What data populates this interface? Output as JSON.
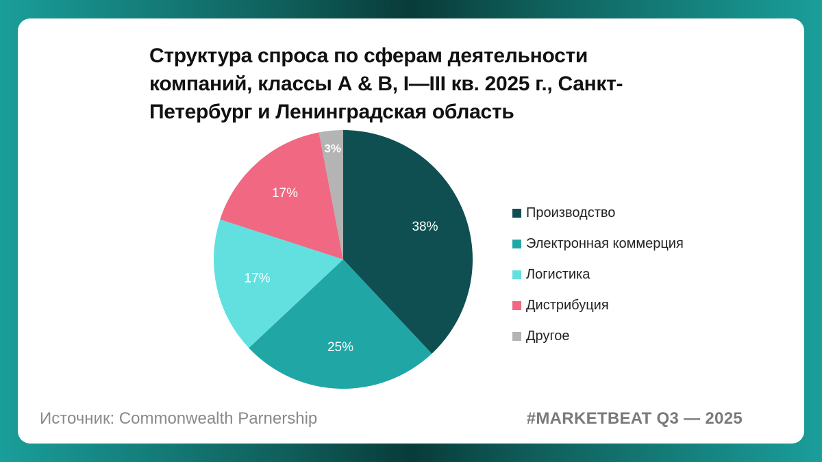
{
  "title": "Структура спроса по сферам деятельности компаний, классы А & B, I—III кв. 2025 г., Санкт-Петербург и Ленинградская область",
  "source": "Источник: Commonwealth Parnership",
  "brand": "#MARKETBEAT Q3 — 2025",
  "chart_data": {
    "type": "pie",
    "title": "Структура спроса по сферам деятельности компаний, классы А & B, I—III кв. 2025 г., Санкт-Петербург и Ленинградская область",
    "legend_position": "right",
    "slices": [
      {
        "name": "Производство",
        "value": 38,
        "label": "38%",
        "color": "#0f4f52"
      },
      {
        "name": "Электронная коммерция",
        "value": 25,
        "label": "25%",
        "color": "#21a6a6"
      },
      {
        "name": "Логистика",
        "value": 17,
        "label": "17%",
        "color": "#62e0e0"
      },
      {
        "name": "Дистрибуция",
        "value": 17,
        "label": "17%",
        "color": "#f06882"
      },
      {
        "name": "Другое",
        "value": 3,
        "label": "3%",
        "color": "#b4b4b4"
      }
    ]
  }
}
